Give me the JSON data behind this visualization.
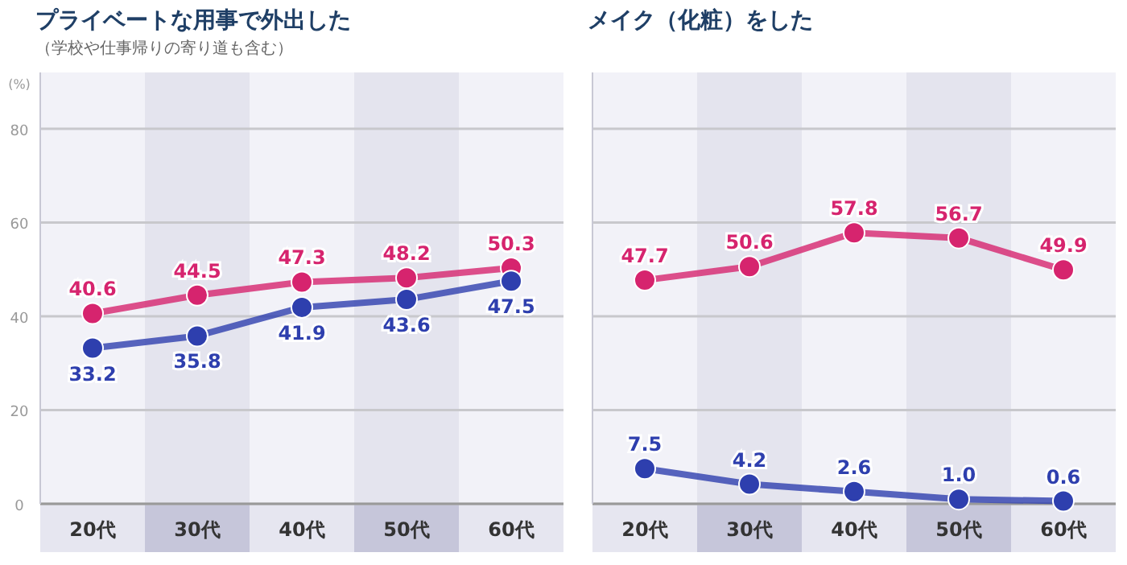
{
  "chart_data": [
    {
      "type": "line",
      "title": "プライベートな用事で外出した",
      "subtitle": "（学校や仕事帰りの寄り道も含む）",
      "ylabel": "(%)",
      "categories": [
        "20代",
        "30代",
        "40代",
        "50代",
        "60代"
      ],
      "series": [
        {
          "color": "#d6246e",
          "values": [
            40.6,
            44.5,
            47.3,
            48.2,
            50.3
          ],
          "value_labels": [
            "40.6",
            "44.5",
            "47.3",
            "48.2",
            "50.3"
          ]
        },
        {
          "color": "#2e3fae",
          "values": [
            33.2,
            35.8,
            41.9,
            43.6,
            47.5
          ],
          "value_labels": [
            "33.2",
            "35.8",
            "41.9",
            "43.6",
            "47.5"
          ]
        }
      ],
      "ylim": [
        0,
        92
      ],
      "yticks": [
        0,
        20,
        40,
        60,
        80
      ],
      "grid": "y",
      "marker": "circle"
    },
    {
      "type": "line",
      "title": "メイク（化粧）をした",
      "categories": [
        "20代",
        "30代",
        "40代",
        "50代",
        "60代"
      ],
      "series": [
        {
          "color": "#d6246e",
          "values": [
            47.7,
            50.6,
            57.8,
            56.7,
            49.9
          ],
          "value_labels": [
            "47.7",
            "50.6",
            "57.8",
            "56.7",
            "49.9"
          ]
        },
        {
          "color": "#2e3fae",
          "values": [
            7.5,
            4.2,
            2.6,
            1.0,
            0.6
          ],
          "value_labels": [
            "7.5",
            "4.2",
            "2.6",
            "1.0",
            "0.6"
          ]
        }
      ],
      "ylim": [
        0,
        92
      ],
      "yticks": [
        0,
        20,
        40,
        60,
        80
      ],
      "grid": "y",
      "marker": "circle",
      "tick_labels": "x"
    }
  ]
}
